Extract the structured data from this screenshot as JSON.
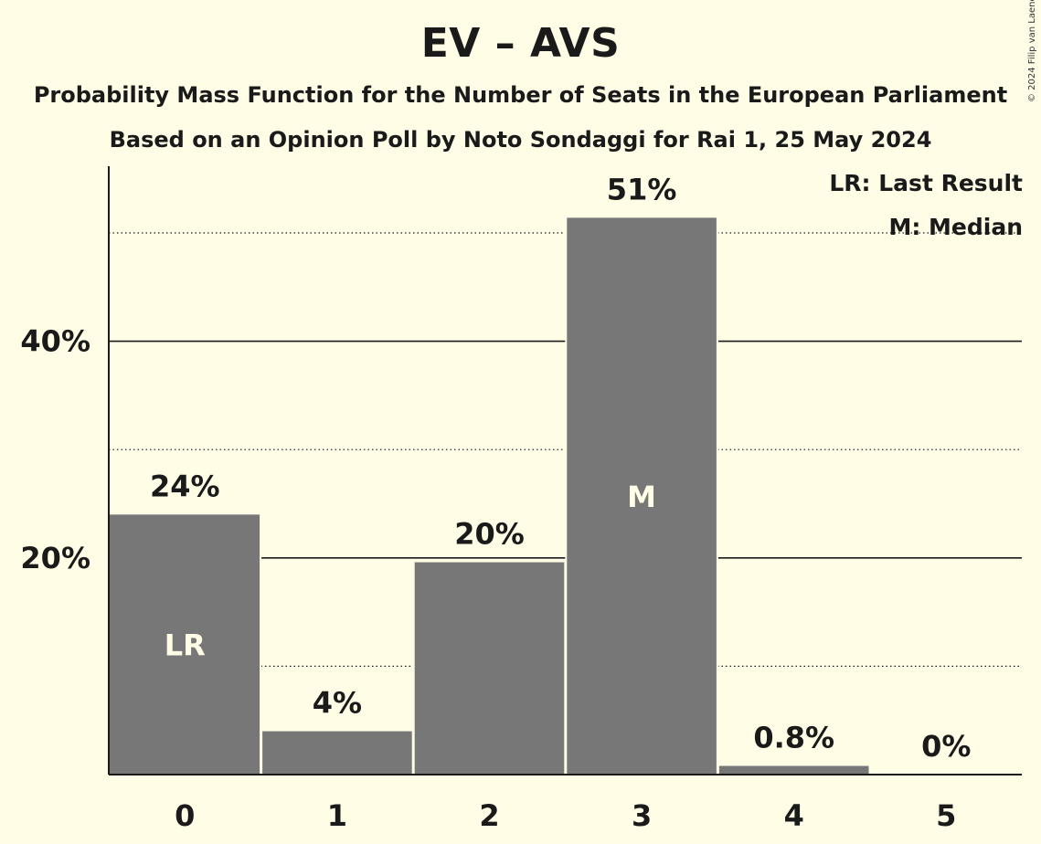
{
  "title": "EV – AVS",
  "subtitle": "Probability Mass Function for the Number of Seats in the European Parliament",
  "subtitle2": "Based on an Opinion Poll by Noto Sondaggi for Rai 1, 25 May 2024",
  "copyright": "© 2024 Filip van Laenen",
  "legend": {
    "last_result": "LR: Last Result",
    "median": "M: Median"
  },
  "colors": {
    "background": "#FFFDE6",
    "bar": "#777777",
    "bar_label_inside": "#FFFDE6",
    "text": "#1a1a1a"
  },
  "chart_data": {
    "type": "bar",
    "categories": [
      "0",
      "1",
      "2",
      "3",
      "4",
      "5"
    ],
    "values": [
      24,
      4,
      19.6,
      51.4,
      0.8,
      0
    ],
    "data_labels": [
      "24%",
      "4%",
      "20%",
      "51%",
      "0.8%",
      "0%"
    ],
    "bar_markers": [
      "LR",
      "",
      "",
      "M",
      "",
      ""
    ],
    "y_ticks": [
      {
        "value": 20,
        "label": "20%"
      },
      {
        "value": 40,
        "label": "40%"
      }
    ],
    "y_minor_gridlines": [
      10,
      30,
      50
    ],
    "ylim": [
      0,
      56
    ],
    "grid": true,
    "legend_position": "top-right"
  }
}
